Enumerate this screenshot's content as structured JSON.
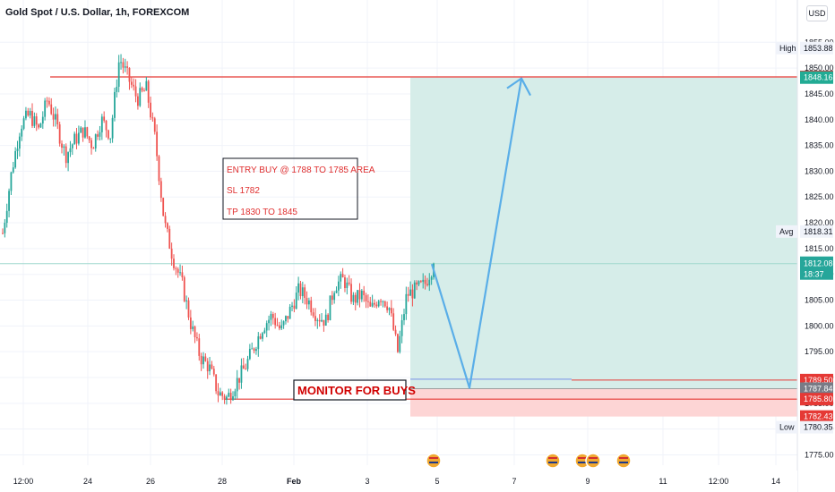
{
  "header": {
    "title": "Gold Spot / U.S. Dollar, 1h, FOREXCOM",
    "currency_button": "USD"
  },
  "chart_data": {
    "type": "candlestick",
    "ylim": [
      1773,
      1858
    ],
    "y_ticks": [
      1775.0,
      1780.0,
      1785.0,
      1790.0,
      1795.0,
      1800.0,
      1805.0,
      1810.0,
      1815.0,
      1820.0,
      1825.0,
      1830.0,
      1835.0,
      1840.0,
      1845.0,
      1850.0,
      1855.0
    ],
    "x_ticks": [
      "12:00",
      "24",
      "26",
      "28",
      "Feb",
      "3",
      "5",
      "7",
      "9",
      "11",
      "12:00",
      "14"
    ],
    "price_path": [
      1818,
      1830,
      1839,
      1841,
      1838,
      1844,
      1839,
      1833,
      1836,
      1838,
      1835,
      1840,
      1837,
      1852,
      1848,
      1844,
      1846,
      1836,
      1820,
      1813,
      1808,
      1800,
      1794,
      1792,
      1787,
      1786,
      1789,
      1792,
      1796,
      1800,
      1802,
      1799,
      1803,
      1807,
      1805,
      1802,
      1801,
      1808,
      1809,
      1805,
      1806,
      1803,
      1806,
      1804,
      1795,
      1806,
      1807,
      1808,
      1812
    ],
    "high": 1853.88,
    "low": 1780.35,
    "avg": 1818.31,
    "current_price": 1812.08,
    "countdown": "18:37",
    "price_tags": [
      {
        "label": "High",
        "value": "1853.88",
        "color": "#ffffff",
        "text": "#131722",
        "boxed": false
      },
      {
        "label": "",
        "value": "1848.29",
        "color": "#e53935",
        "text": "#ffffff",
        "boxed": true
      },
      {
        "label": "",
        "value": "1848.16",
        "color": "#22ab94",
        "text": "#ffffff",
        "boxed": true
      },
      {
        "label": "Avg",
        "value": "1818.31",
        "color": "#ffffff",
        "text": "#131722",
        "boxed": false
      },
      {
        "label": "",
        "value": "1789.50",
        "color": "#e53935",
        "text": "#ffffff",
        "boxed": true
      },
      {
        "label": "",
        "value": "1787.84",
        "color": "#787b86",
        "text": "#ffffff",
        "boxed": true
      },
      {
        "label": "",
        "value": "1785.80",
        "color": "#e53935",
        "text": "#ffffff",
        "boxed": true
      },
      {
        "label": "",
        "value": "1782.43",
        "color": "#e53935",
        "text": "#ffffff",
        "boxed": true
      },
      {
        "label": "Low",
        "value": "1780.35",
        "color": "#ffffff",
        "text": "#131722",
        "boxed": false
      }
    ],
    "position": {
      "entry": 1787.84,
      "target": 1848.16,
      "stop": 1782.43,
      "profit_color": "#d6ede9",
      "loss_color": "#fdd5d5"
    },
    "resistance_level": 1848.29,
    "support_level": 1785.8,
    "entry_level": 1789.5,
    "projection_path": [
      1812,
      1788,
      1848
    ],
    "annotations": {
      "note_lines": [
        "ENTRY BUY @ 1788 TO 1785 AREA",
        "SL 1782",
        "TP 1830 TO 1845"
      ],
      "monitor_label": "MONITOR FOR BUYS"
    },
    "event_markers": 5
  },
  "colors": {
    "up": "#26a69a",
    "down": "#ef5350",
    "line_red": "#e53935",
    "projection": "#5aaee8",
    "grid": "#f0f3fa"
  }
}
